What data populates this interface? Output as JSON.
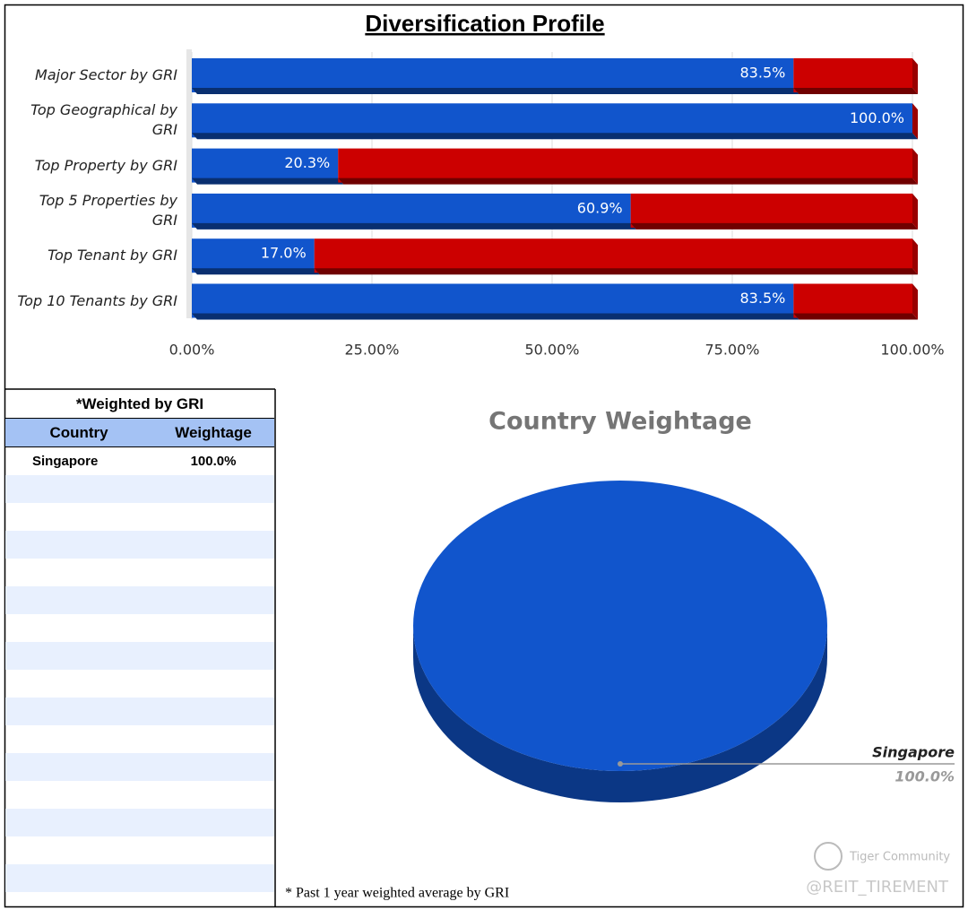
{
  "chart_data": [
    {
      "type": "bar",
      "orientation": "horizontal",
      "stacked": true,
      "title": "Diversification Profile",
      "categories": [
        "Major Sector by GRI",
        "Top Geographical by GRI",
        "Top Property by GRI",
        "Top 5 Properties by GRI",
        "Top Tenant by GRI",
        "Top 10 Tenants by GRI"
      ],
      "series": [
        {
          "color": "#1155cc",
          "values": [
            83.5,
            100.0,
            20.3,
            60.9,
            17.0,
            83.5
          ],
          "value_labels": [
            "83.5%",
            "100.0%",
            "20.3%",
            "60.9%",
            "17.0%",
            "83.5%"
          ]
        },
        {
          "color": "#cc0000",
          "values": [
            16.5,
            0.0,
            79.7,
            39.1,
            83.0,
            16.5
          ]
        }
      ],
      "xlim": [
        0,
        100
      ],
      "xticks": [
        {
          "value": 0,
          "label": "0.00%"
        },
        {
          "value": 25,
          "label": "25.00%"
        },
        {
          "value": 50,
          "label": "50.00%"
        },
        {
          "value": 75,
          "label": "75.00%"
        },
        {
          "value": 100,
          "label": "100.00%"
        }
      ],
      "grid": true
    },
    {
      "type": "pie",
      "title": "Country Weightage",
      "categories": [
        "Singapore"
      ],
      "values": [
        100.0
      ],
      "value_labels": [
        "100.0%"
      ],
      "colors": [
        "#1155cc"
      ]
    }
  ],
  "table": {
    "title": "*Weighted by GRI",
    "header": [
      "Country",
      "Weightage"
    ],
    "rows": [
      [
        "Singapore",
        "100.0%"
      ]
    ]
  },
  "footnote": "* Past 1 year weighted average by GRI",
  "watermark": {
    "brand": "Tiger Community",
    "handle": "@REIT_TIREMENT"
  }
}
